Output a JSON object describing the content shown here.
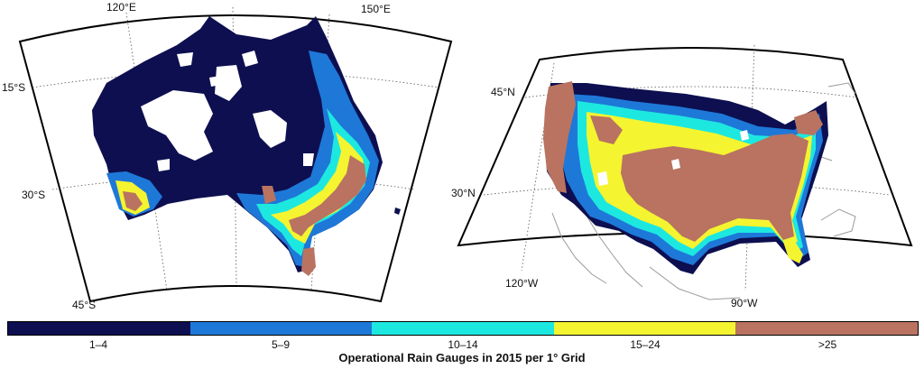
{
  "title": "Operational Rain Gauges in 2015 per 1° Grid",
  "legend": [
    {
      "label": "1–4",
      "color": "#0d0f50"
    },
    {
      "label": "5–9",
      "color": "#1e78d8"
    },
    {
      "label": "10–14",
      "color": "#1de8e0"
    },
    {
      "label": "15–24",
      "color": "#f4f430"
    },
    {
      "label": ">25",
      "color": "#b97360"
    }
  ],
  "maps": {
    "australia": {
      "lon_labels": [
        "120°E",
        "150°E"
      ],
      "lat_labels": [
        "15°S",
        "30°S",
        "45°S"
      ]
    },
    "usa": {
      "lat_labels": [
        "45°N",
        "30°N"
      ],
      "lon_labels": [
        "120°W",
        "90°W"
      ]
    }
  }
}
